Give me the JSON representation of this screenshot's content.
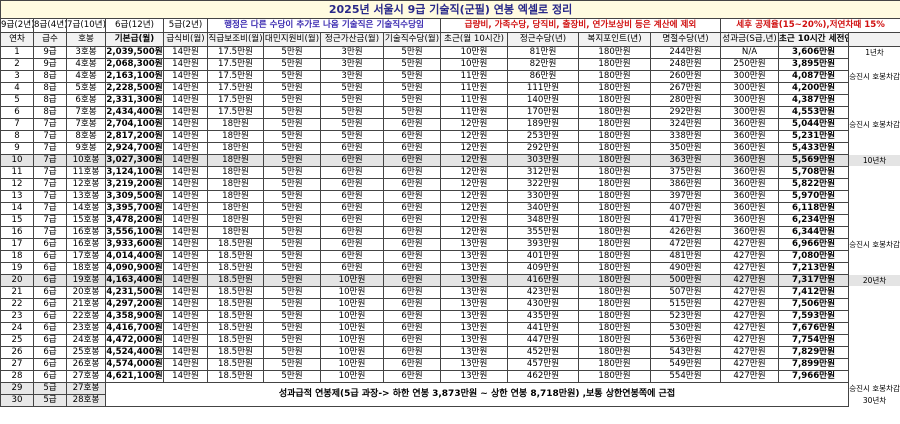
{
  "title": "2025년 서울시 9급 기술직(군필) 연봉 엑셀로 정리",
  "info": {
    "grades": [
      "9급(2년)",
      "8급(4년)",
      "7급(10년)",
      "6급(12년)",
      "5급(2년)"
    ],
    "note_admin": "행정은 다른 수당이 추가로 나옴 기술직은 기술직수당임",
    "note_excluded": "급량비, 가족수당, 당직비, 출장비, 연가보상비 등은 계산에 제외",
    "note_tax": "세후 공제율(15~20%),저연차때 15%"
  },
  "headers": [
    "연차",
    "급수",
    "호봉",
    "기본급(월)",
    "급식비(월)",
    "직급보조비(월)",
    "대민지원비(월)",
    "정근가산금(월)",
    "기술직수당(월)",
    "초근(월 10시간)",
    "정근수당(년)",
    "복지포인트(년)",
    "명절수당(년)",
    "성과금(S급,년)",
    "초근 10시간 세전연봉"
  ],
  "rows": [
    {
      "cells": [
        "1",
        "9급",
        "3호봉",
        "2,039,500원",
        "14만원",
        "17.5만원",
        "5만원",
        "3만원",
        "5만원",
        "10만원",
        "81만원",
        "180만원",
        "244만원",
        "N/A",
        "3,606만원"
      ],
      "note": "1년차"
    },
    {
      "cells": [
        "2",
        "9급",
        "4호봉",
        "2,068,300원",
        "14만원",
        "17.5만원",
        "5만원",
        "3만원",
        "5만원",
        "10만원",
        "82만원",
        "180만원",
        "248만원",
        "250만원",
        "3,895만원"
      ]
    },
    {
      "cells": [
        "3",
        "8급",
        "4호봉",
        "2,163,100원",
        "14만원",
        "17.5만원",
        "5만원",
        "3만원",
        "5만원",
        "11만원",
        "86만원",
        "180만원",
        "260만원",
        "300만원",
        "4,087만원"
      ],
      "note": "승진시 호봉차감"
    },
    {
      "cells": [
        "4",
        "8급",
        "5호봉",
        "2,228,500원",
        "14만원",
        "17.5만원",
        "5만원",
        "5만원",
        "5만원",
        "11만원",
        "111만원",
        "180만원",
        "267만원",
        "300만원",
        "4,200만원"
      ]
    },
    {
      "cells": [
        "5",
        "8급",
        "6호봉",
        "2,331,300원",
        "14만원",
        "17.5만원",
        "5만원",
        "5만원",
        "5만원",
        "11만원",
        "140만원",
        "180만원",
        "280만원",
        "300만원",
        "4,387만원"
      ]
    },
    {
      "cells": [
        "6",
        "8급",
        "7호봉",
        "2,434,400원",
        "14만원",
        "17.5만원",
        "5만원",
        "5만원",
        "5만원",
        "11만원",
        "170만원",
        "180만원",
        "292만원",
        "300만원",
        "4,553만원"
      ]
    },
    {
      "cells": [
        "7",
        "7급",
        "7호봉",
        "2,704,100원",
        "14만원",
        "18만원",
        "5만원",
        "5만원",
        "6만원",
        "12만원",
        "189만원",
        "180만원",
        "324만원",
        "360만원",
        "5,044만원"
      ],
      "note": "승진시 호봉차감"
    },
    {
      "cells": [
        "8",
        "7급",
        "8호봉",
        "2,817,200원",
        "14만원",
        "18만원",
        "5만원",
        "5만원",
        "6만원",
        "12만원",
        "253만원",
        "180만원",
        "338만원",
        "360만원",
        "5,231만원"
      ]
    },
    {
      "cells": [
        "9",
        "7급",
        "9호봉",
        "2,924,700원",
        "14만원",
        "18만원",
        "5만원",
        "6만원",
        "6만원",
        "12만원",
        "292만원",
        "180만원",
        "350만원",
        "360만원",
        "5,433만원"
      ]
    },
    {
      "cells": [
        "10",
        "7급",
        "10호봉",
        "3,027,300원",
        "14만원",
        "18만원",
        "5만원",
        "6만원",
        "6만원",
        "12만원",
        "303만원",
        "180만원",
        "363만원",
        "360만원",
        "5,569만원"
      ],
      "note": "10년차"
    },
    {
      "cells": [
        "11",
        "7급",
        "11호봉",
        "3,124,100원",
        "14만원",
        "18만원",
        "5만원",
        "6만원",
        "6만원",
        "12만원",
        "312만원",
        "180만원",
        "375만원",
        "360만원",
        "5,708만원"
      ]
    },
    {
      "cells": [
        "12",
        "7급",
        "12호봉",
        "3,219,200원",
        "14만원",
        "18만원",
        "5만원",
        "6만원",
        "6만원",
        "12만원",
        "322만원",
        "180만원",
        "386만원",
        "360만원",
        "5,822만원"
      ]
    },
    {
      "cells": [
        "13",
        "7급",
        "13호봉",
        "3,309,500원",
        "14만원",
        "18만원",
        "5만원",
        "6만원",
        "6만원",
        "12만원",
        "330만원",
        "180만원",
        "397만원",
        "360만원",
        "5,970만원"
      ]
    },
    {
      "cells": [
        "14",
        "7급",
        "14호봉",
        "3,395,700원",
        "14만원",
        "18만원",
        "5만원",
        "6만원",
        "6만원",
        "12만원",
        "340만원",
        "180만원",
        "407만원",
        "360만원",
        "6,118만원"
      ]
    },
    {
      "cells": [
        "15",
        "7급",
        "15호봉",
        "3,478,200원",
        "14만원",
        "18만원",
        "5만원",
        "6만원",
        "6만원",
        "12만원",
        "348만원",
        "180만원",
        "417만원",
        "360만원",
        "6,234만원"
      ]
    },
    {
      "cells": [
        "16",
        "7급",
        "16호봉",
        "3,556,100원",
        "14만원",
        "18만원",
        "5만원",
        "6만원",
        "6만원",
        "12만원",
        "355만원",
        "180만원",
        "426만원",
        "360만원",
        "6,344만원"
      ]
    },
    {
      "cells": [
        "17",
        "6급",
        "16호봉",
        "3,933,600원",
        "14만원",
        "18.5만원",
        "5만원",
        "6만원",
        "6만원",
        "13만원",
        "393만원",
        "180만원",
        "472만원",
        "427만원",
        "6,966만원"
      ],
      "note": "승진시 호봉차감"
    },
    {
      "cells": [
        "18",
        "6급",
        "17호봉",
        "4,014,400원",
        "14만원",
        "18.5만원",
        "5만원",
        "6만원",
        "6만원",
        "13만원",
        "401만원",
        "180만원",
        "481만원",
        "427만원",
        "7,080만원"
      ]
    },
    {
      "cells": [
        "19",
        "6급",
        "18호봉",
        "4,090,900원",
        "14만원",
        "18.5만원",
        "5만원",
        "6만원",
        "6만원",
        "13만원",
        "409만원",
        "180만원",
        "490만원",
        "427만원",
        "7,213만원"
      ]
    },
    {
      "cells": [
        "20",
        "6급",
        "19호봉",
        "4,163,400원",
        "14만원",
        "18.5만원",
        "5만원",
        "10만원",
        "6만원",
        "13만원",
        "416만원",
        "180만원",
        "500만원",
        "427만원",
        "7,317만원"
      ],
      "note": "20년차"
    },
    {
      "cells": [
        "21",
        "6급",
        "20호봉",
        "4,231,500원",
        "14만원",
        "18.5만원",
        "5만원",
        "10만원",
        "6만원",
        "13만원",
        "423만원",
        "180만원",
        "507만원",
        "427만원",
        "7,412만원"
      ]
    },
    {
      "cells": [
        "22",
        "6급",
        "21호봉",
        "4,297,200원",
        "14만원",
        "18.5만원",
        "5만원",
        "10만원",
        "6만원",
        "13만원",
        "430만원",
        "180만원",
        "515만원",
        "427만원",
        "7,506만원"
      ]
    },
    {
      "cells": [
        "23",
        "6급",
        "22호봉",
        "4,358,900원",
        "14만원",
        "18.5만원",
        "5만원",
        "10만원",
        "6만원",
        "13만원",
        "435만원",
        "180만원",
        "523만원",
        "427만원",
        "7,593만원"
      ]
    },
    {
      "cells": [
        "24",
        "6급",
        "23호봉",
        "4,416,700원",
        "14만원",
        "18.5만원",
        "5만원",
        "10만원",
        "6만원",
        "13만원",
        "441만원",
        "180만원",
        "530만원",
        "427만원",
        "7,676만원"
      ]
    },
    {
      "cells": [
        "25",
        "6급",
        "24호봉",
        "4,472,000원",
        "14만원",
        "18.5만원",
        "5만원",
        "10만원",
        "6만원",
        "13만원",
        "447만원",
        "180만원",
        "536만원",
        "427만원",
        "7,754만원"
      ]
    },
    {
      "cells": [
        "26",
        "6급",
        "25호봉",
        "4,524,400원",
        "14만원",
        "18.5만원",
        "5만원",
        "10만원",
        "6만원",
        "13만원",
        "452만원",
        "180만원",
        "543만원",
        "427만원",
        "7,829만원"
      ]
    },
    {
      "cells": [
        "27",
        "6급",
        "26호봉",
        "4,574,000원",
        "14만원",
        "18.5만원",
        "5만원",
        "10만원",
        "6만원",
        "13만원",
        "457만원",
        "180만원",
        "549만원",
        "427만원",
        "7,899만원"
      ]
    },
    {
      "cells": [
        "28",
        "6급",
        "27호봉",
        "4,621,100원",
        "14만원",
        "18.5만원",
        "5만원",
        "10만원",
        "6만원",
        "13만원",
        "462만원",
        "180만원",
        "554만원",
        "427만원",
        "7,966만원"
      ]
    },
    {
      "cells": [
        "29",
        "5급",
        "27호봉"
      ],
      "note": "승진시 호봉차감"
    },
    {
      "cells": [
        "30",
        "5급",
        "28호봉"
      ],
      "note": "30년차"
    }
  ],
  "merged_note": "성과급적 연봉제(5급 과장-> 하한 연봉 3,873만원 ~ 상한 연봉 8,718만원) ,보통 상한연봉쪽에 근접"
}
